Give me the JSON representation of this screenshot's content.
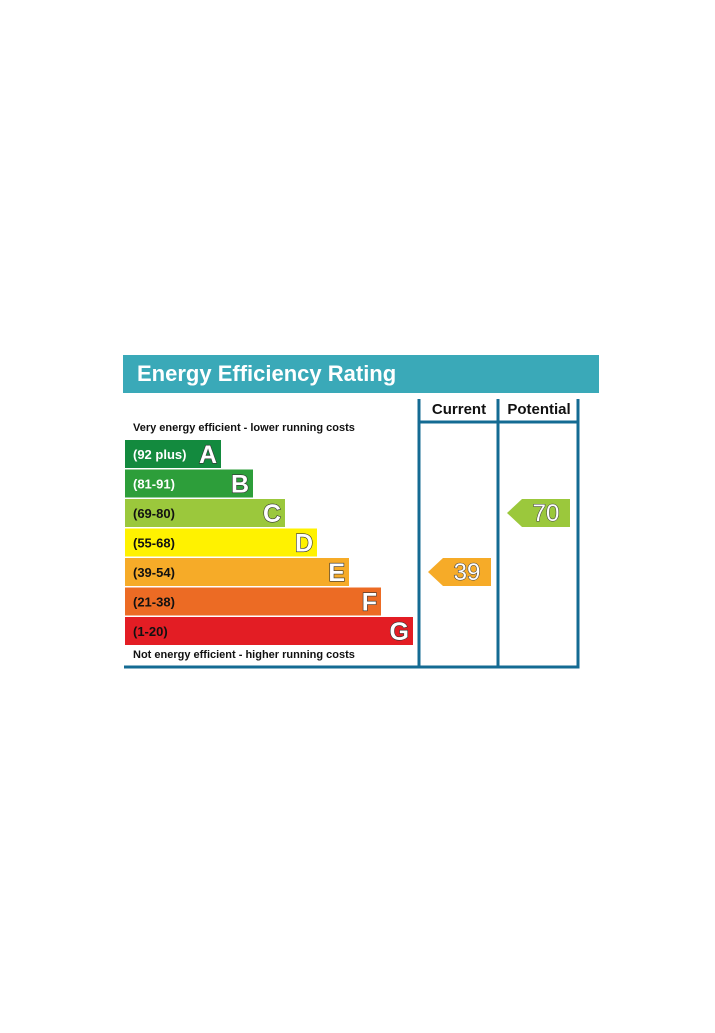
{
  "chart_data": {
    "type": "bar",
    "title": "Energy Efficiency Rating",
    "columns": [
      "Current",
      "Potential"
    ],
    "top_caption": "Very energy efficient - lower running costs",
    "bottom_caption": "Not energy efficient - higher running costs",
    "bands": [
      {
        "letter": "A",
        "range": "(92 plus)",
        "min": 92,
        "max": 100,
        "color": "#138a3e",
        "text_color": "#ffffff"
      },
      {
        "letter": "B",
        "range": "(81-91)",
        "min": 81,
        "max": 91,
        "color": "#2d9e3a",
        "text_color": "#ffffff"
      },
      {
        "letter": "C",
        "range": "(69-80)",
        "min": 69,
        "max": 80,
        "color": "#9bc83c",
        "text_color": "#111111"
      },
      {
        "letter": "D",
        "range": "(55-68)",
        "min": 55,
        "max": 68,
        "color": "#fff200",
        "text_color": "#111111"
      },
      {
        "letter": "E",
        "range": "(39-54)",
        "min": 39,
        "max": 54,
        "color": "#f6ab28",
        "text_color": "#111111"
      },
      {
        "letter": "F",
        "range": "(21-38)",
        "min": 21,
        "max": 38,
        "color": "#ec6b24",
        "text_color": "#111111"
      },
      {
        "letter": "G",
        "range": "(1-20)",
        "min": 1,
        "max": 20,
        "color": "#e31d24",
        "text_color": "#111111"
      }
    ],
    "ratings": [
      {
        "column": "Current",
        "value": 39,
        "band": "E",
        "color": "#f6ab28"
      },
      {
        "column": "Potential",
        "value": 70,
        "band": "C",
        "color": "#9bc83c"
      }
    ],
    "header_color": "#3aa9b8",
    "frame_color": "#146b93"
  }
}
